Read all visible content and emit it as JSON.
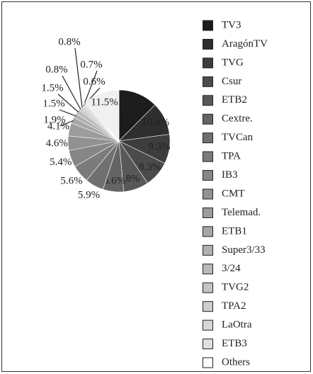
{
  "chart_data": {
    "type": "pie",
    "categories": [
      "TV3",
      "AragónTV",
      "TVG",
      "Csur",
      "ETB2",
      "Cextre.",
      "TVCan",
      "TPA",
      "IB3",
      "CMT",
      "Telemad.",
      "ETB1",
      "Super3/33",
      "3/24",
      "TVG2",
      "TPA2",
      "LaOtra",
      "ETB3",
      "Others"
    ],
    "values": [
      12.5,
      10.4,
      9.3,
      8.3,
      8,
      6.6,
      5.9,
      5.6,
      5.4,
      4.6,
      4.1,
      1.9,
      1.5,
      1.5,
      0.8,
      0.8,
      0.7,
      0.6,
      11.5
    ],
    "value_labels": [
      "12.5%",
      "10.4%",
      "9.3%",
      "8.3%",
      "8%",
      "6.6%",
      "5.9%",
      "5.6%",
      "5.4%",
      "4.6%",
      "4.1%",
      "1.9%",
      "1.5%",
      "1.5%",
      "0.8%",
      "0.8%",
      "0.7%",
      "0.6%",
      "11.5%"
    ],
    "colors": [
      "#1c1c1c",
      "#2e2e2e",
      "#3d3d3d",
      "#4b4b4b",
      "#585858",
      "#646464",
      "#707070",
      "#7b7b7b",
      "#868686",
      "#919191",
      "#9c9c9c",
      "#a6a6a6",
      "#b0b0b0",
      "#bababa",
      "#c4c4c4",
      "#cdcdcd",
      "#d7d7d7",
      "#e0e0e0",
      "#f0f0f0"
    ],
    "legend": "right"
  }
}
